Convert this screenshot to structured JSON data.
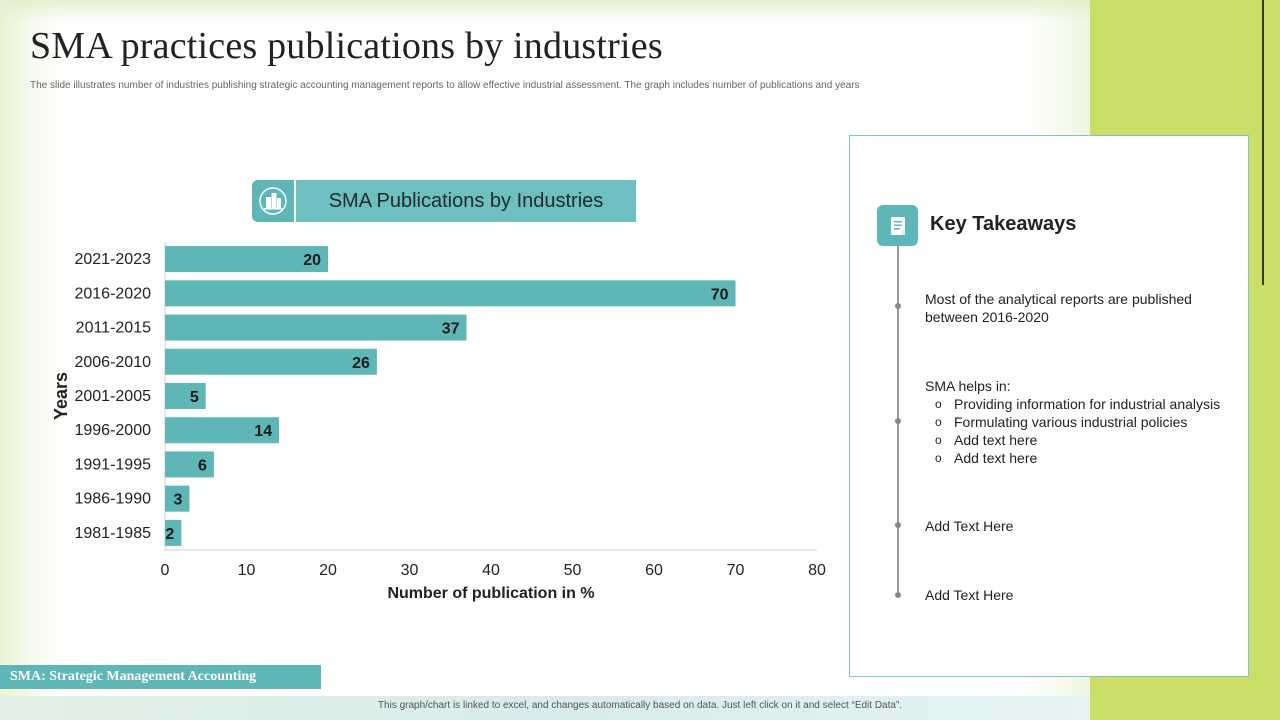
{
  "title": "SMA practices publications by industries",
  "subtitle": "The slide illustrates number of industries publishing strategic accounting management reports to allow effective industrial assessment. The graph includes number of publications and years",
  "chart_header": "SMA Publications by Industries",
  "chart_data": {
    "type": "bar",
    "orientation": "horizontal",
    "title": "SMA Publications by Industries",
    "categories": [
      "2021-2023",
      "2016-2020",
      "2011-2015",
      "2006-2010",
      "2001-2005",
      "1996-2000",
      "1991-1995",
      "1986-1990",
      "1981-1985"
    ],
    "values": [
      20,
      70,
      37,
      26,
      5,
      14,
      6,
      3,
      2
    ],
    "xlabel": "Number of publication in %",
    "ylabel": "Years",
    "xlim": [
      0,
      80
    ],
    "xticks": [
      0,
      10,
      20,
      30,
      40,
      50,
      60,
      70,
      80
    ],
    "bar_color": "#5fb6b6"
  },
  "takeaways": {
    "title": "Key Takeaways",
    "item1": "Most of the analytical reports are published between 2016-2020",
    "item2_intro": "SMA helps in:",
    "item2_subitems": [
      "Providing information for industrial analysis",
      "Formulating various industrial policies",
      "Add text here",
      "Add text here"
    ],
    "subitem_bullet": "o",
    "item3": "Add Text Here",
    "item4": "Add Text Here"
  },
  "footer_label": "SMA: Strategic Management Accounting",
  "footer_note": "This graph/chart is linked to excel, and changes automatically based on data. Just left click on it and select “Edit Data”.",
  "colors": {
    "accent": "#5fb6b6",
    "side_strip": "#c9df68"
  }
}
